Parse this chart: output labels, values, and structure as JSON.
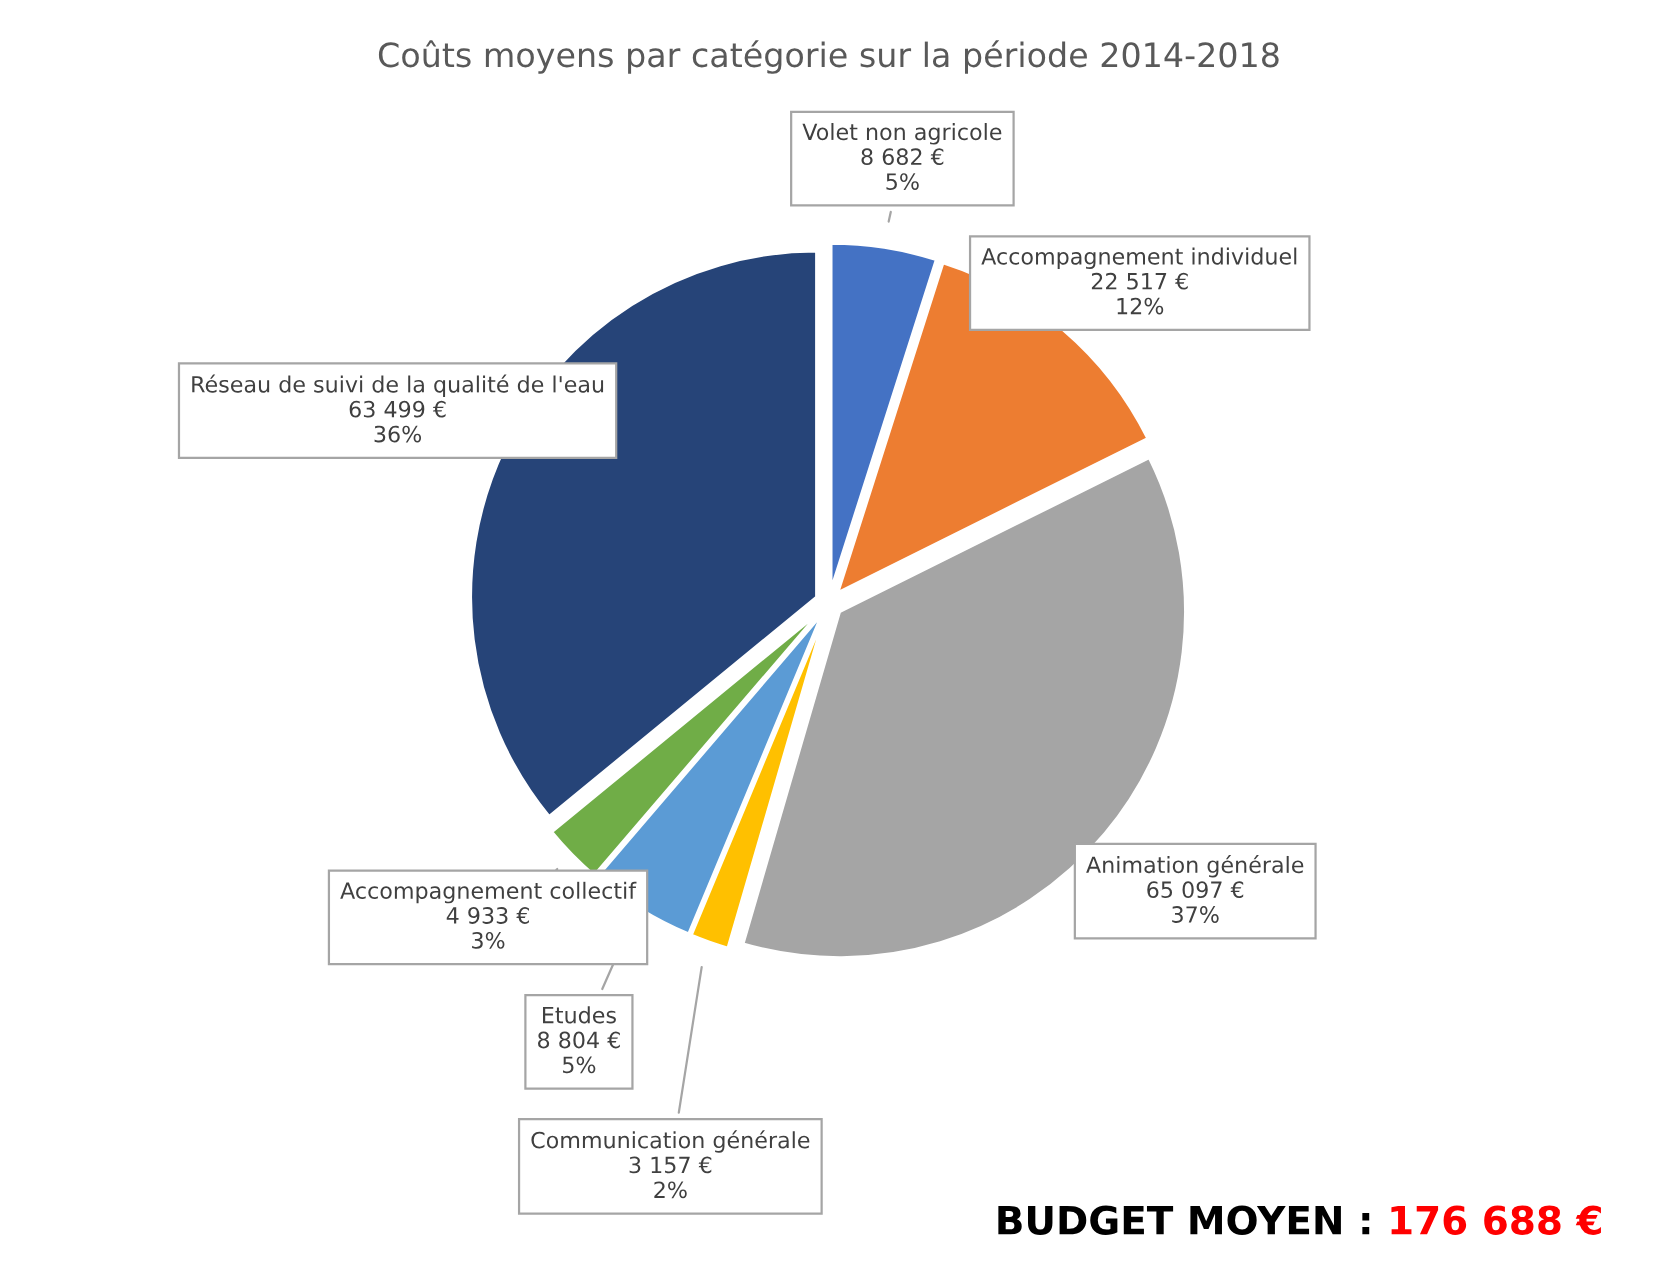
{
  "chart_data": {
    "type": "pie",
    "title": "Coûts moyens par catégorie sur la période 2014-2018",
    "categories": [
      "Volet non agricole",
      "Accompagnement individuel",
      "Animation générale",
      "Communication générale",
      "Etudes",
      "Accompagnement collectif",
      "Réseau de suivi de la qualité de l'eau"
    ],
    "values": [
      8682,
      22517,
      65097,
      3157,
      8804,
      4933,
      63499
    ],
    "colors": [
      "#4472c4",
      "#ed7d31",
      "#a5a5a5",
      "#ffc000",
      "#5b9bd5",
      "#70ad47",
      "#264478"
    ],
    "value_labels": [
      "8 682 €\n5%",
      "22 517 €\n12%",
      "65 097 €\n37%",
      "3 157 €\n2%",
      "8 804 €\n5%",
      "4 933 €\n3%",
      "63 499 €\n36%"
    ],
    "annotations": [
      "BUDGET MOYEN :",
      "176 688 €"
    ]
  }
}
